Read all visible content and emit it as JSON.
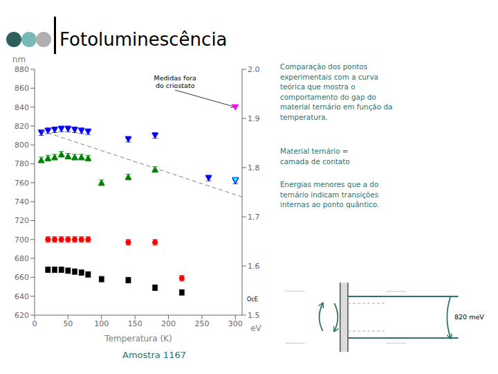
{
  "chart_data": {
    "type": "scatter",
    "title": "Fotoluminescência",
    "subtitle": "Amostra 1167",
    "xlabel": "Temperatura (K)",
    "ylabel": "nm",
    "y2label": "eV",
    "xlim": [
      0,
      310
    ],
    "xticks": [
      0,
      50,
      100,
      150,
      200,
      250,
      300
    ],
    "ylim": [
      620,
      880
    ],
    "yticks": [
      620,
      640,
      660,
      680,
      700,
      720,
      740,
      760,
      780,
      800,
      820,
      840,
      860,
      880
    ],
    "y2lim": [
      1.5,
      2.0
    ],
    "y2ticks": [
      1.5,
      1.6,
      1.7,
      1.8,
      1.9,
      {
        "value": 2.0,
        "label": "2.0"
      }
    ],
    "series": [
      {
        "color": "blue",
        "marker": "triangle-down",
        "x": [
          10,
          20,
          30,
          40,
          50,
          60,
          70,
          80,
          140,
          180,
          260,
          300
        ],
        "values": [
          813,
          815,
          816,
          817,
          817,
          816,
          815,
          814,
          806,
          810,
          765,
          762
        ],
        "error": [
          3,
          3,
          3,
          3,
          3,
          3,
          3,
          3,
          3,
          3,
          3,
          3
        ]
      },
      {
        "color": "green",
        "marker": "triangle-up",
        "x": [
          10,
          20,
          30,
          40,
          50,
          60,
          70,
          80,
          100,
          140,
          180
        ],
        "values": [
          784,
          786,
          787,
          790,
          788,
          787,
          787,
          786,
          760,
          766,
          774
        ],
        "error": [
          3,
          3,
          3,
          3,
          3,
          3,
          3,
          3,
          3,
          3,
          3
        ]
      },
      {
        "color": "red",
        "marker": "circle",
        "x": [
          20,
          30,
          40,
          50,
          60,
          70,
          80,
          140,
          180,
          220
        ],
        "values": [
          700,
          700,
          700,
          700,
          700,
          700,
          700,
          697,
          697,
          659
        ],
        "error": [
          3,
          3,
          3,
          3,
          3,
          3,
          3,
          3,
          3,
          3
        ]
      },
      {
        "color": "black",
        "marker": "square",
        "x": [
          20,
          30,
          40,
          50,
          60,
          70,
          80,
          100,
          140,
          180,
          220
        ],
        "values": [
          668,
          668,
          668,
          667,
          666,
          665,
          663,
          658,
          657,
          649,
          644
        ],
        "error": [
          3,
          3,
          3,
          3,
          3,
          3,
          3,
          3,
          3,
          3,
          3
        ]
      },
      {
        "color": "magenta",
        "marker": "triangle-down",
        "x": [
          300
        ],
        "values": [
          840
        ]
      },
      {
        "color": "cyan",
        "edge_color": "blue",
        "marker": "triangle-down",
        "x": [
          300
        ],
        "values": [
          763
        ]
      },
      {
        "type": "line",
        "color": "gray",
        "line_style": "dashed",
        "marker": "none",
        "x": [
          10,
          310
        ],
        "values": [
          815,
          745
        ]
      }
    ],
    "annotations": [
      {
        "text": "Medidas fora\ndo criostato",
        "x": 300,
        "y": 840,
        "text_x": 210,
        "text_y": 858
      }
    ],
    "axis_note": "OcE",
    "notes": [
      "Comparação dos pontos\nexperimentais com a curva\nteórica que mostra o\ncomportamento do gap do\nmaterial ternário em função da\ntemperatura.",
      "Material ternário =\ncamada de contato",
      "Energias menores que a do\nternário indicam transições\ninternas ao ponto quântico."
    ],
    "diagram_label": "820 meV",
    "header_colors": [
      "#2d5f5f",
      "#7ab8b8",
      "#b0b0b0"
    ],
    "text_color": "#2d7070"
  }
}
